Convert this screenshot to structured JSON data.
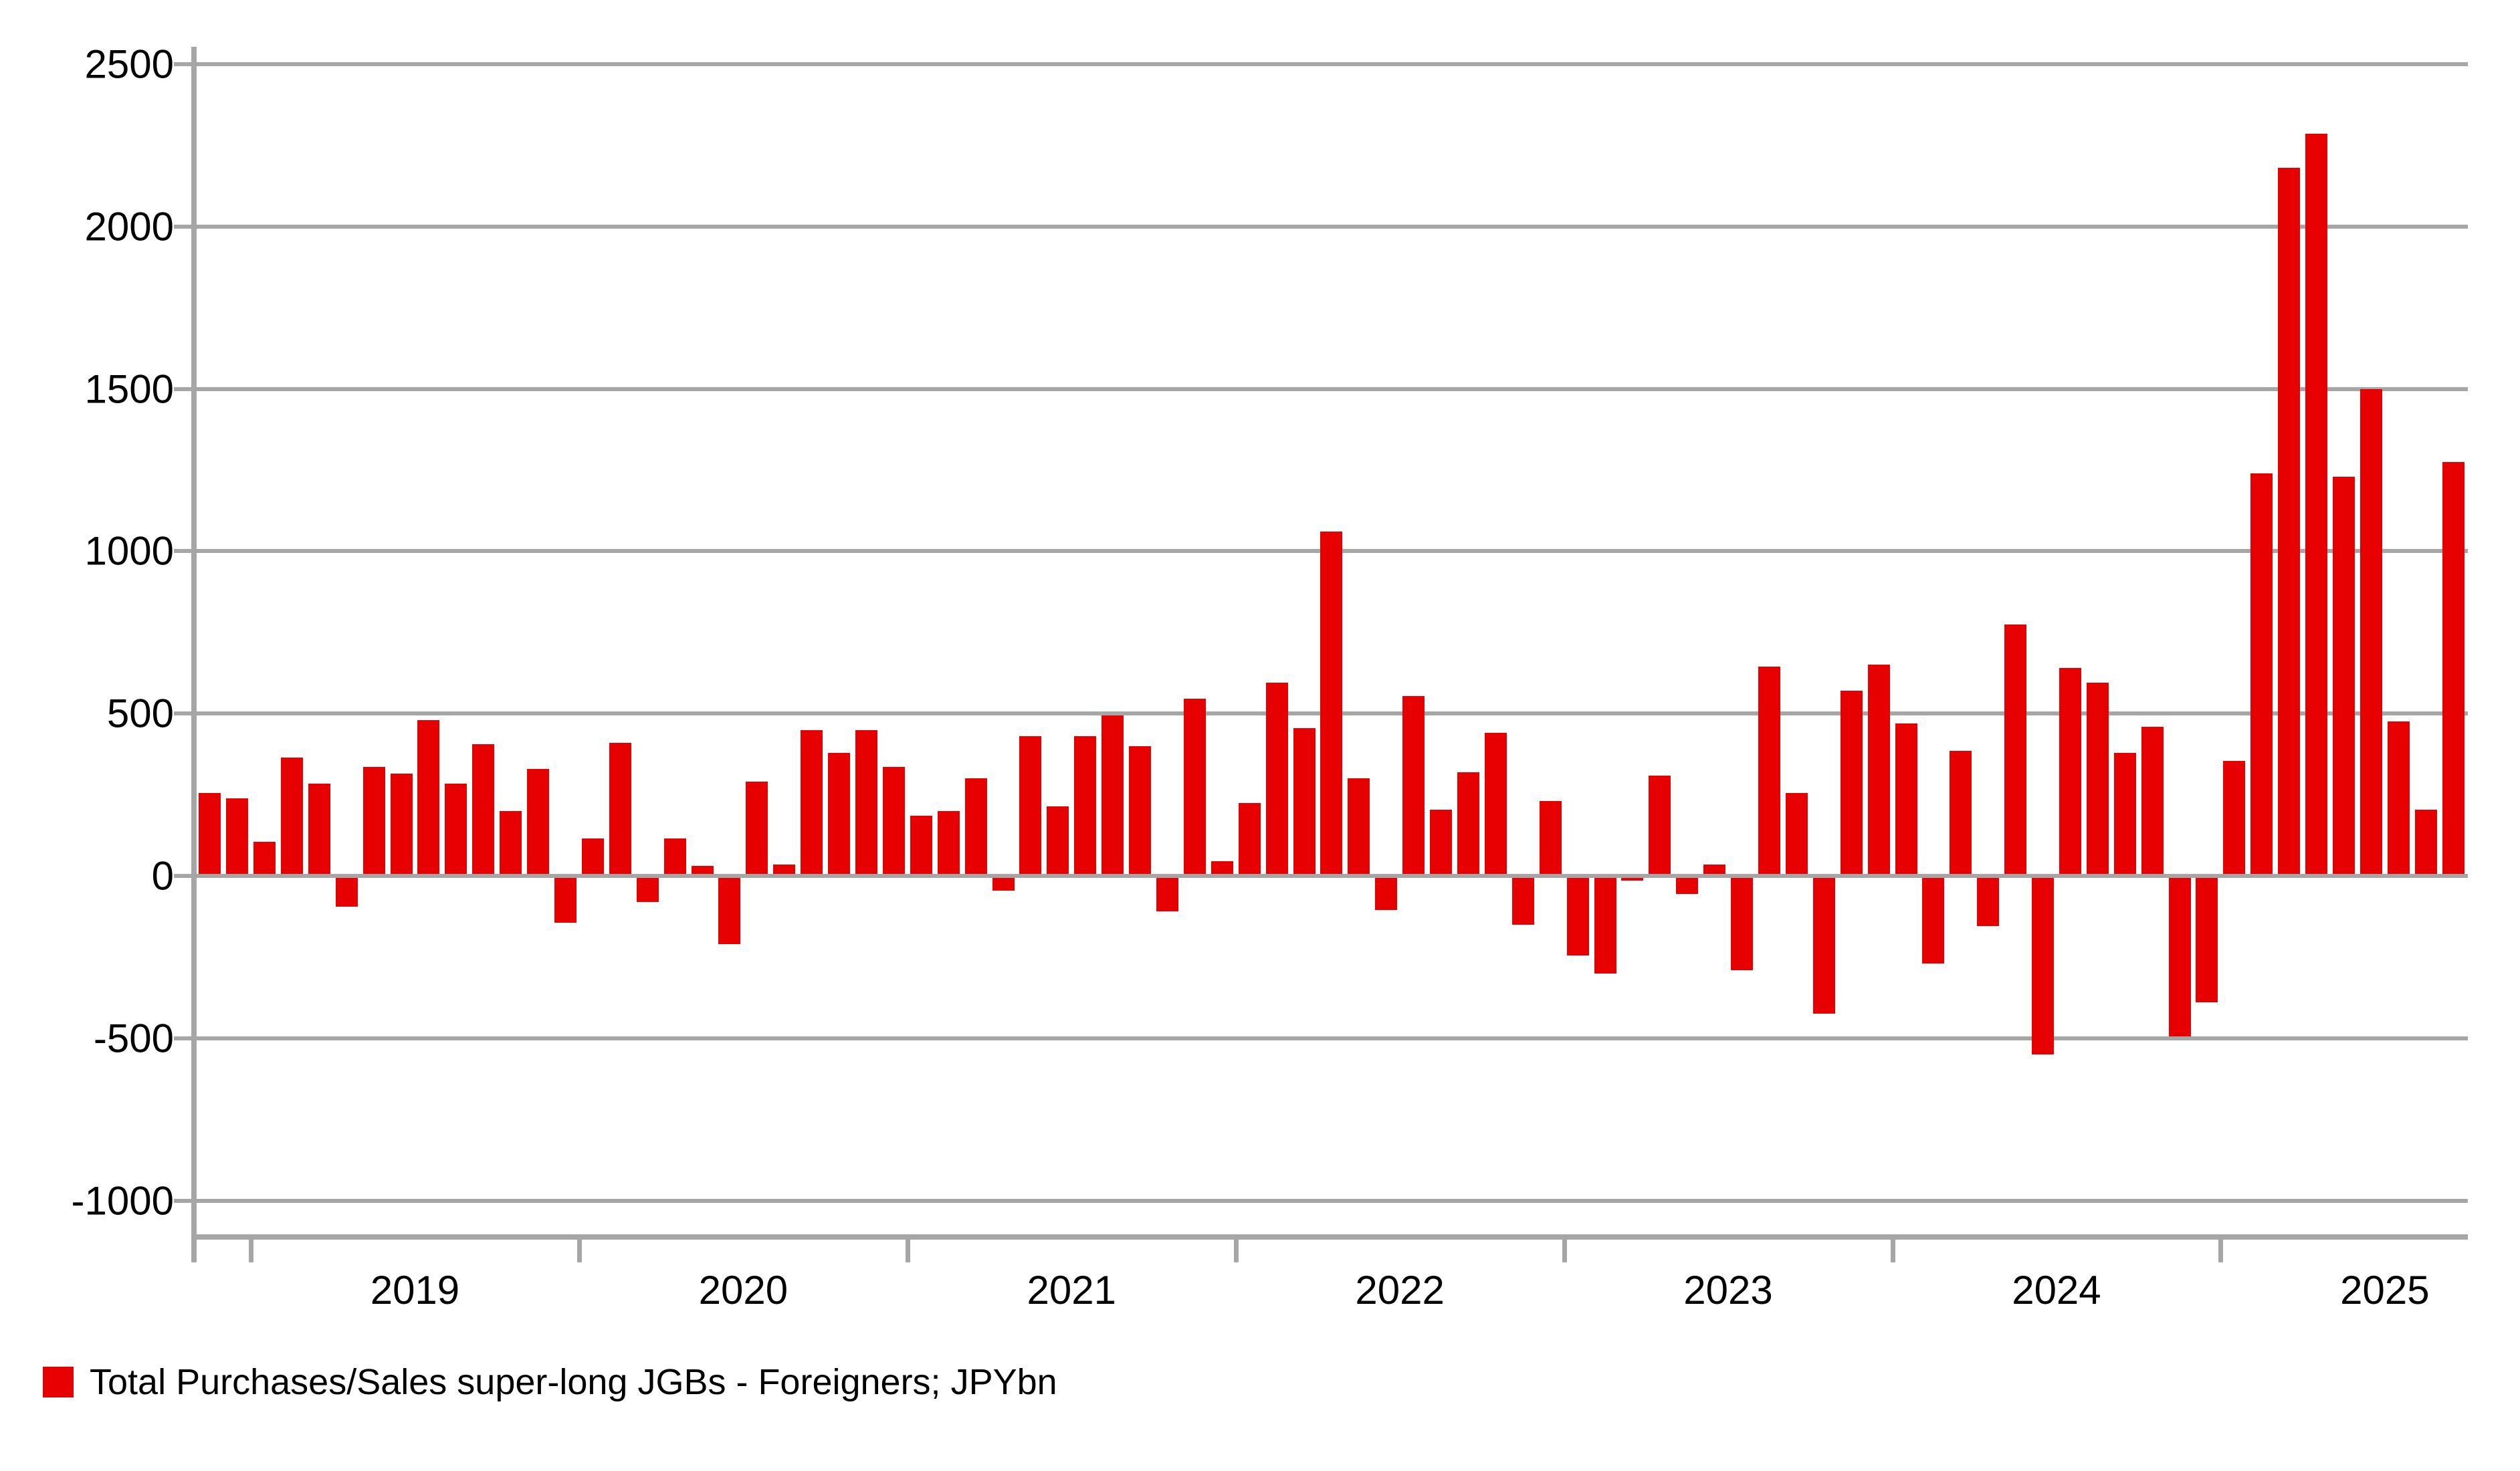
{
  "legend": {
    "label": "Total Purchases/Sales super-long JGBs - Foreigners; JPYbn"
  },
  "colors": {
    "bar": "#e60000",
    "grid": "#a6a6a6",
    "text": "#000000",
    "background": "#ffffff"
  },
  "chart_data": {
    "type": "bar",
    "title": "",
    "xlabel": "",
    "ylabel": "",
    "legend_label": "Total Purchases/Sales super-long JGBs - Foreigners; JPYbn",
    "ylim": [
      -1000,
      2500
    ],
    "yticks": [
      2500,
      2000,
      1500,
      1000,
      500,
      0,
      -500,
      -1000
    ],
    "ytick_labels": [
      "2500",
      "2000",
      "1500",
      "1000",
      "500",
      "0",
      "-500",
      "-1000"
    ],
    "year_tick_years": [
      2019,
      2020,
      2021,
      2022,
      2023,
      2024,
      2025
    ],
    "year_labels": [
      "2019",
      "2020",
      "2021",
      "2022",
      "2023",
      "2024",
      "2025"
    ],
    "grid": true,
    "legend_position": "bottom-left",
    "bar_color": "#e60000",
    "categories": [
      "2018-11",
      "2018-12",
      "2019-01",
      "2019-02",
      "2019-03",
      "2019-04",
      "2019-05",
      "2019-06",
      "2019-07",
      "2019-08",
      "2019-09",
      "2019-10",
      "2019-11",
      "2019-12",
      "2020-01",
      "2020-02",
      "2020-03",
      "2020-04",
      "2020-05",
      "2020-06",
      "2020-07",
      "2020-08",
      "2020-09",
      "2020-10",
      "2020-11",
      "2020-12",
      "2021-01",
      "2021-02",
      "2021-03",
      "2021-04",
      "2021-05",
      "2021-06",
      "2021-07",
      "2021-08",
      "2021-09",
      "2021-10",
      "2021-11",
      "2021-12",
      "2022-01",
      "2022-02",
      "2022-03",
      "2022-04",
      "2022-05",
      "2022-06",
      "2022-07",
      "2022-08",
      "2022-09",
      "2022-10",
      "2022-11",
      "2022-12",
      "2023-01",
      "2023-02",
      "2023-03",
      "2023-04",
      "2023-05",
      "2023-06",
      "2023-07",
      "2023-08",
      "2023-09",
      "2023-10",
      "2023-11",
      "2023-12",
      "2024-01",
      "2024-02",
      "2024-03",
      "2024-04",
      "2024-05",
      "2024-06",
      "2024-07",
      "2024-08",
      "2024-09",
      "2024-10",
      "2024-11",
      "2024-12",
      "2025-01",
      "2025-02",
      "2025-03",
      "2025-04",
      "2025-05",
      "2025-06",
      "2025-07",
      "2025-08",
      "2025-09"
    ],
    "values": [
      255,
      240,
      105,
      365,
      285,
      -95,
      335,
      315,
      480,
      285,
      405,
      200,
      330,
      -145,
      115,
      410,
      -80,
      115,
      30,
      -210,
      290,
      35,
      450,
      380,
      450,
      335,
      185,
      200,
      300,
      -45,
      430,
      215,
      430,
      495,
      400,
      -110,
      545,
      45,
      225,
      595,
      455,
      1060,
      300,
      -105,
      555,
      205,
      320,
      440,
      -150,
      230,
      -245,
      -300,
      -15,
      310,
      -55,
      35,
      -290,
      645,
      255,
      -425,
      570,
      650,
      470,
      -270,
      385,
      -155,
      775,
      -550,
      640,
      595,
      380,
      460,
      -495,
      -390,
      355,
      1240,
      2180,
      2285,
      1230,
      1500,
      475,
      205,
      1275
    ]
  }
}
